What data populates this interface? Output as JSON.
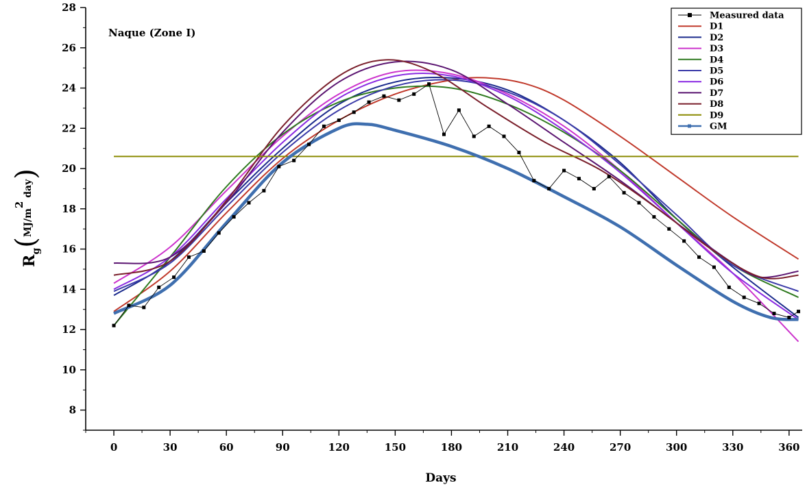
{
  "chart_data": {
    "type": "line",
    "annotation": "Naque (Zone I)",
    "xlabel": "Days",
    "ylabel": {
      "main": "R",
      "sub": "g",
      "unit_prefix": "MJ/m",
      "unit_sup": "2",
      "unit_suffix": " day"
    },
    "xlim": [
      -15,
      367
    ],
    "ylim": [
      7,
      28
    ],
    "xticks": [
      0,
      30,
      60,
      90,
      120,
      150,
      180,
      210,
      240,
      270,
      300,
      330,
      360
    ],
    "xtick_labels": [
      "0",
      "30",
      "60",
      "90",
      "120",
      "150",
      "180",
      "210",
      "240",
      "270",
      "300",
      "330",
      "360"
    ],
    "yticks": [
      8,
      10,
      12,
      14,
      16,
      18,
      20,
      22,
      24,
      26,
      28
    ],
    "ytick_labels": [
      "8",
      "10",
      "12",
      "14",
      "16",
      "18",
      "20",
      "22",
      "24",
      "26",
      "28"
    ],
    "grid": false,
    "legend_position": "top-right",
    "measured": {
      "name": "Measured data",
      "color": "#000000",
      "x": [
        0,
        8,
        16,
        24,
        32,
        40,
        48,
        56,
        64,
        72,
        80,
        88,
        96,
        104,
        112,
        120,
        128,
        136,
        144,
        152,
        160,
        168,
        176,
        184,
        192,
        200,
        208,
        216,
        224,
        232,
        240,
        248,
        256,
        264,
        272,
        280,
        288,
        296,
        304,
        312,
        320,
        328,
        336,
        344,
        352,
        360,
        365
      ],
      "y": [
        12.2,
        13.2,
        13.1,
        14.1,
        14.6,
        15.6,
        15.9,
        16.8,
        17.6,
        18.3,
        18.9,
        20.1,
        20.4,
        21.2,
        22.1,
        22.4,
        22.8,
        23.3,
        23.6,
        23.4,
        23.7,
        24.2,
        21.7,
        22.9,
        21.6,
        22.1,
        21.6,
        20.8,
        19.4,
        19.0,
        19.9,
        19.5,
        19.0,
        19.6,
        18.8,
        18.3,
        17.6,
        17.0,
        16.4,
        15.6,
        15.1,
        14.1,
        13.6,
        13.3,
        12.8,
        12.6,
        12.9
      ]
    },
    "series": [
      {
        "name": "D1",
        "color": "#c0392b",
        "x": [
          0,
          30,
          60,
          90,
          120,
          150,
          180,
          200,
          220,
          240,
          270,
          300,
          330,
          365
        ],
        "values": [
          12.9,
          14.9,
          17.8,
          20.5,
          22.4,
          23.7,
          24.4,
          24.5,
          24.2,
          23.4,
          21.6,
          19.6,
          17.6,
          15.5
        ]
      },
      {
        "name": "D2",
        "color": "#1a2a8c",
        "x": [
          0,
          30,
          60,
          90,
          120,
          150,
          180,
          210,
          240,
          270,
          300,
          330,
          365
        ],
        "values": [
          13.7,
          15.4,
          18.3,
          21.0,
          23.2,
          24.3,
          24.5,
          23.9,
          22.4,
          20.3,
          17.5,
          15.1,
          12.6
        ]
      },
      {
        "name": "D3",
        "color": "#cc33cc",
        "x": [
          0,
          30,
          60,
          90,
          120,
          150,
          180,
          210,
          240,
          270,
          300,
          330,
          365
        ],
        "values": [
          14.3,
          16.1,
          18.9,
          21.6,
          23.7,
          24.8,
          24.7,
          23.7,
          22.1,
          19.9,
          17.3,
          14.8,
          11.4
        ]
      },
      {
        "name": "D4",
        "color": "#2f7a1f",
        "x": [
          0,
          30,
          60,
          90,
          120,
          150,
          180,
          210,
          240,
          270,
          300,
          330,
          365
        ],
        "values": [
          12.2,
          15.6,
          19.1,
          21.7,
          23.3,
          24.0,
          24.0,
          23.2,
          21.8,
          19.9,
          17.5,
          15.2,
          13.6
        ]
      },
      {
        "name": "D5",
        "color": "#3a3aa8",
        "x": [
          0,
          30,
          60,
          90,
          120,
          150,
          180,
          210,
          240,
          270,
          300,
          330,
          365
        ],
        "values": [
          13.9,
          15.3,
          18.1,
          20.8,
          22.9,
          24.1,
          24.4,
          23.8,
          22.4,
          20.2,
          17.7,
          15.2,
          13.9
        ]
      },
      {
        "name": "D6",
        "color": "#8a2be2",
        "x": [
          0,
          30,
          60,
          90,
          120,
          150,
          180,
          210,
          240,
          270,
          300,
          330,
          365
        ],
        "values": [
          14.0,
          15.6,
          18.5,
          21.3,
          23.5,
          24.6,
          24.6,
          23.6,
          21.9,
          19.8,
          17.3,
          14.8,
          12.5
        ]
      },
      {
        "name": "D7",
        "color": "#5a1470",
        "x": [
          0,
          30,
          60,
          90,
          120,
          150,
          180,
          210,
          240,
          270,
          300,
          330,
          345,
          365
        ],
        "values": [
          15.3,
          15.6,
          18.3,
          21.8,
          24.3,
          25.3,
          24.9,
          23.2,
          21.3,
          19.4,
          17.3,
          15.3,
          14.6,
          14.9
        ]
      },
      {
        "name": "D8",
        "color": "#7a1f2b",
        "x": [
          0,
          30,
          60,
          90,
          120,
          145,
          170,
          200,
          230,
          260,
          290,
          320,
          345,
          365
        ],
        "values": [
          14.7,
          15.4,
          18.4,
          22.1,
          24.6,
          25.4,
          24.8,
          23.0,
          21.3,
          19.9,
          18.0,
          15.9,
          14.6,
          14.7
        ]
      },
      {
        "name": "D9",
        "color": "#8a8a00",
        "x": [
          0,
          365
        ],
        "values": [
          20.6,
          20.6
        ]
      },
      {
        "name": "GM",
        "color": "#3f6faf",
        "x": [
          0,
          30,
          60,
          90,
          120,
          135,
          150,
          180,
          210,
          240,
          270,
          300,
          330,
          350,
          365
        ],
        "values": [
          12.8,
          14.2,
          17.3,
          20.3,
          22.0,
          22.2,
          21.9,
          21.1,
          20.0,
          18.6,
          17.1,
          15.2,
          13.4,
          12.6,
          12.5
        ]
      }
    ]
  }
}
